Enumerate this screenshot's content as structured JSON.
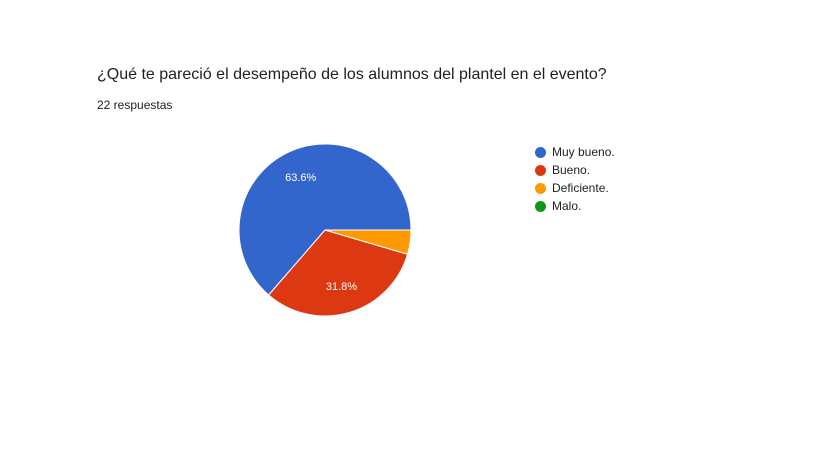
{
  "question": {
    "title": "¿Qué te pareció el desempeño de los alumnos del plantel en el evento?",
    "response_count": "22 respuestas"
  },
  "chart_data": {
    "type": "pie",
    "categories": [
      "Muy bueno.",
      "Bueno.",
      "Deficiente.",
      "Malo."
    ],
    "values": [
      14,
      7,
      1,
      0
    ],
    "percent_labels": [
      "63.6%",
      "31.8%",
      "",
      ""
    ],
    "colors": [
      "#3366cc",
      "#dc3912",
      "#ff9900",
      "#109618"
    ],
    "legend_position": "right",
    "title": "",
    "xlabel": "",
    "ylabel": ""
  }
}
